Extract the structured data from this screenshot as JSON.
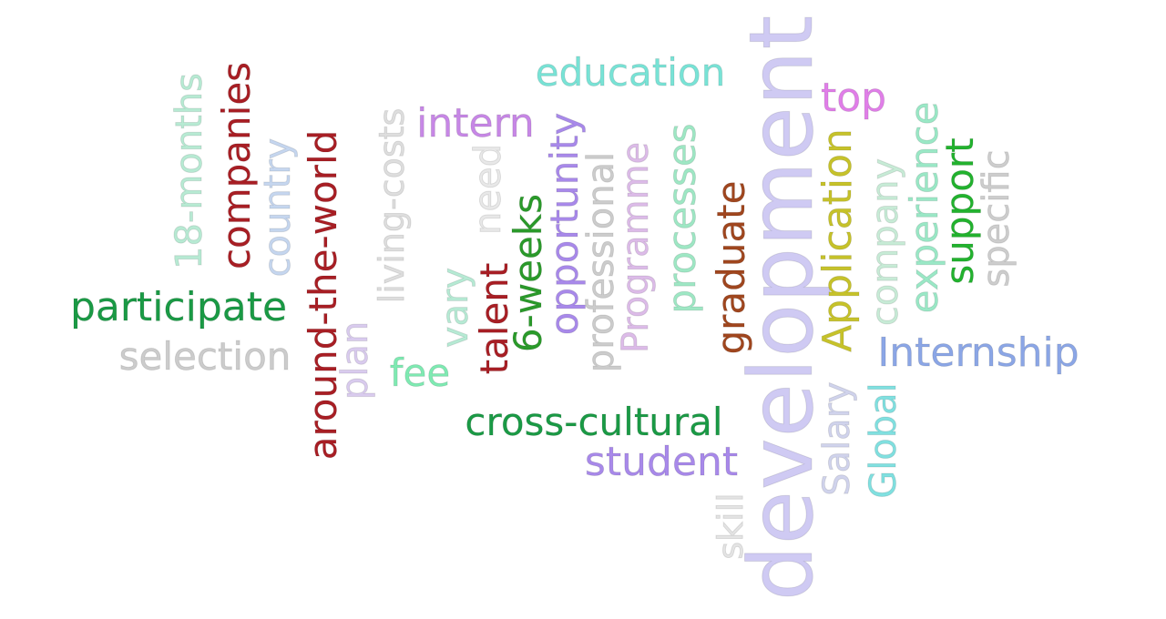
{
  "words": {
    "development": {
      "text": "development",
      "color": "#cfcaf3"
    },
    "education": {
      "text": "education",
      "color": "#78e3d6"
    },
    "intern": {
      "text": "intern",
      "color": "#c787e6"
    },
    "top": {
      "text": "top",
      "color": "#e07ee8"
    },
    "internship": {
      "text": "Internship",
      "color": "#8ba6e6"
    },
    "participate": {
      "text": "participate",
      "color": "#1a9a45"
    },
    "selection": {
      "text": "selection",
      "color": "#cccccc"
    },
    "cross": {
      "text": "cross-cultural",
      "color": "#1a9a45"
    },
    "student": {
      "text": "student",
      "color": "#a889ea"
    },
    "fee": {
      "text": "fee",
      "color": "#7eeab2"
    },
    "months": {
      "text": "18-months",
      "color": "#b7ead3"
    },
    "companies": {
      "text": "companies",
      "color": "#a81e24"
    },
    "country": {
      "text": "country",
      "color": "#c5d6ef"
    },
    "atw": {
      "text": "around-the-world",
      "color": "#a81e24"
    },
    "plan": {
      "text": "plan",
      "color": "#d9cbee"
    },
    "living": {
      "text": "living-costs",
      "color": "#dedede"
    },
    "vary": {
      "text": "vary",
      "color": "#b6ead4"
    },
    "need": {
      "text": "need",
      "color": "#e8e8e8"
    },
    "talent": {
      "text": "talent",
      "color": "#a81e24"
    },
    "weeks": {
      "text": "6-weeks",
      "color": "#2a9a2a"
    },
    "opportunity": {
      "text": "opportunity",
      "color": "#a889ea"
    },
    "professional": {
      "text": "professional",
      "color": "#cccccc"
    },
    "programme": {
      "text": "Programme",
      "color": "#dcbbe8"
    },
    "processes": {
      "text": "processes",
      "color": "#9ee7c4"
    },
    "graduate": {
      "text": "graduate",
      "color": "#a0461e"
    },
    "skill": {
      "text": "skill",
      "color": "#e4e4e4"
    },
    "salary": {
      "text": "Salary",
      "color": "#d0d3ec"
    },
    "application": {
      "text": "Application",
      "color": "#c6c22a"
    },
    "company": {
      "text": "company",
      "color": "#c7ebd6"
    },
    "global": {
      "text": "Global",
      "color": "#80e0e0"
    },
    "experience": {
      "text": "experience",
      "color": "#9ae8c6"
    },
    "support": {
      "text": "support",
      "color": "#22b22e"
    },
    "specific": {
      "text": "specific",
      "color": "#cdcdcd"
    }
  }
}
